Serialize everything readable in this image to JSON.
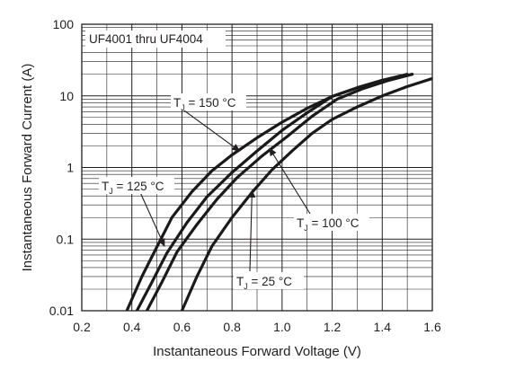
{
  "chart_data": {
    "type": "line",
    "title": "UF4001 thru UF4004",
    "xlabel": "Instantaneous Forward Voltage (V)",
    "ylabel": "Instantaneous Forward Current (A)",
    "xlim": [
      0.2,
      1.6
    ],
    "ylim": [
      0.01,
      100
    ],
    "y_scale": "log",
    "grid": true,
    "x_ticks": [
      0.2,
      0.4,
      0.6,
      0.8,
      1.0,
      1.2,
      1.4,
      1.6
    ],
    "x_tick_labels": [
      "0.2",
      "0.4",
      "0.6",
      "0.8",
      "1.0",
      "1.2",
      "1.4",
      "1.6"
    ],
    "y_ticks": [
      0.01,
      0.1,
      1,
      10,
      100
    ],
    "y_tick_labels": [
      "0.01",
      "0.1",
      "1",
      "10",
      "100"
    ],
    "series": [
      {
        "name": "150 °C",
        "x": [
          0.38,
          0.44,
          0.5,
          0.56,
          0.64,
          0.72,
          0.8,
          0.9,
          1.0,
          1.1,
          1.2,
          1.3,
          1.4,
          1.52
        ],
        "y": [
          0.01,
          0.03,
          0.078,
          0.2,
          0.46,
          0.9,
          1.5,
          2.6,
          4.3,
          6.7,
          9.8,
          13,
          16.5,
          20
        ]
      },
      {
        "name": "125 °C",
        "x": [
          0.42,
          0.48,
          0.54,
          0.62,
          0.7,
          0.8,
          0.9,
          1.0,
          1.1,
          1.2,
          1.3,
          1.4,
          1.5
        ],
        "y": [
          0.01,
          0.025,
          0.064,
          0.17,
          0.39,
          0.85,
          1.7,
          3.3,
          5.8,
          9.8,
          13,
          16.5,
          20
        ]
      },
      {
        "name": "100 °C",
        "x": [
          0.46,
          0.52,
          0.58,
          0.66,
          0.74,
          0.82,
          0.92,
          1.02,
          1.12,
          1.22,
          1.32,
          1.42,
          1.52
        ],
        "y": [
          0.01,
          0.025,
          0.066,
          0.16,
          0.36,
          0.72,
          1.45,
          2.7,
          5.2,
          9.0,
          12.5,
          16.2,
          20
        ]
      },
      {
        "name": "25 °C",
        "x": [
          0.6,
          0.66,
          0.72,
          0.8,
          0.88,
          0.96,
          1.04,
          1.12,
          1.2,
          1.3,
          1.4,
          1.5,
          1.6
        ],
        "y": [
          0.01,
          0.03,
          0.08,
          0.2,
          0.45,
          0.93,
          1.7,
          3.0,
          4.7,
          7.0,
          10,
          13.5,
          17.5
        ]
      }
    ],
    "annotations": [
      {
        "text": "T",
        "sub": "J",
        "rest": " = 150 °C",
        "series": "150 °C",
        "arrow_to": [
          0.83,
          1.7
        ]
      },
      {
        "text": "T",
        "sub": "J",
        "rest": " = 125 °C",
        "series": "125 °C",
        "arrow_to": [
          0.53,
          0.08
        ]
      },
      {
        "text": "T",
        "sub": "J",
        "rest": " = 100 °C",
        "series": "100 °C",
        "arrow_to": [
          0.95,
          1.85
        ]
      },
      {
        "text": "T",
        "sub": "J",
        "rest": " = 25 °C",
        "series": "25 °C",
        "arrow_to": [
          0.88,
          0.48
        ]
      }
    ]
  }
}
